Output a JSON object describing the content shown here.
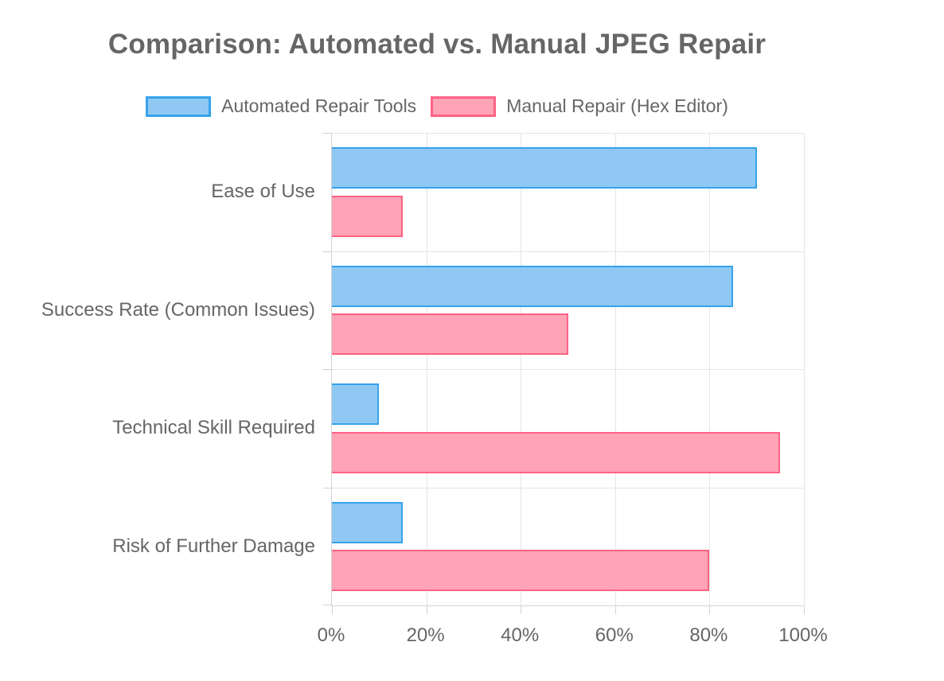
{
  "title": "Comparison: Automated vs. Manual JPEG Repair",
  "colors": {
    "automated_fill": "#8FC9F3",
    "automated_border": "#36A2EB",
    "manual_fill": "#FFA3B7",
    "manual_border": "#FF6384",
    "grid": "#E5E5E5",
    "axis": "#D2D2D2",
    "text": "#666666"
  },
  "chart_data": {
    "type": "bar",
    "orientation": "horizontal",
    "title": "Comparison: Automated vs. Manual JPEG Repair",
    "categories": [
      "Ease of Use",
      "Success Rate (Common Issues)",
      "Technical Skill Required",
      "Risk of Further Damage"
    ],
    "series": [
      {
        "name": "Automated Repair Tools",
        "values": [
          90,
          85,
          10,
          15
        ],
        "fill_color": "#8FC9F3",
        "border_color": "#36A2EB"
      },
      {
        "name": "Manual Repair (Hex Editor)",
        "values": [
          15,
          50,
          95,
          80
        ],
        "fill_color": "#FFA3B7",
        "border_color": "#FF6384"
      }
    ],
    "xlabel": "",
    "ylabel": "",
    "xlim": [
      0,
      100
    ],
    "x_tick_labels": [
      "0%",
      "20%",
      "40%",
      "60%",
      "80%",
      "100%"
    ],
    "grid": true,
    "legend_position": "top"
  }
}
